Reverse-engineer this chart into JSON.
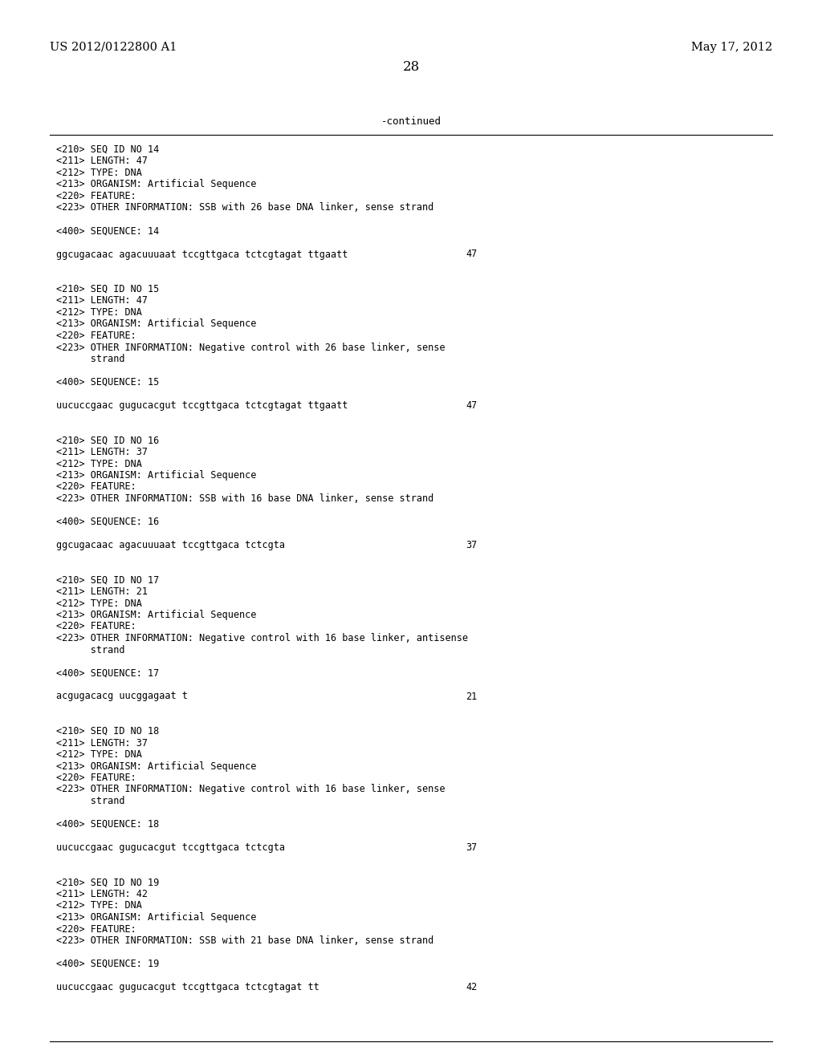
{
  "bg_color": "#ffffff",
  "header_left": "US 2012/0122800 A1",
  "header_right": "May 17, 2012",
  "page_number": "28",
  "continued_label": "-continued",
  "sections": [
    {
      "seq_id": "14",
      "length": "47",
      "type": "DNA",
      "organism": "Artificial Sequence",
      "other_info": "SSB with 26 base DNA linker, sense strand",
      "other_info_wrapped": false,
      "sequence_num": "14",
      "sequence": "ggcugacaac agacuuuaat tccgttgaca tctcgtagat ttgaatt",
      "seq_length_num": "47"
    },
    {
      "seq_id": "15",
      "length": "47",
      "type": "DNA",
      "organism": "Artificial Sequence",
      "other_info": "Negative control with 26 base linker, sense",
      "other_info_line2": "      strand",
      "other_info_wrapped": true,
      "sequence_num": "15",
      "sequence": "uucuccgaac gugucacgut tccgttgaca tctcgtagat ttgaatt",
      "seq_length_num": "47"
    },
    {
      "seq_id": "16",
      "length": "37",
      "type": "DNA",
      "organism": "Artificial Sequence",
      "other_info": "SSB with 16 base DNA linker, sense strand",
      "other_info_wrapped": false,
      "sequence_num": "16",
      "sequence": "ggcugacaac agacuuuaat tccgttgaca tctcgta",
      "seq_length_num": "37"
    },
    {
      "seq_id": "17",
      "length": "21",
      "type": "DNA",
      "organism": "Artificial Sequence",
      "other_info": "Negative control with 16 base linker, antisense",
      "other_info_line2": "      strand",
      "other_info_wrapped": true,
      "sequence_num": "17",
      "sequence": "acgugacacg uucggagaat t",
      "seq_length_num": "21"
    },
    {
      "seq_id": "18",
      "length": "37",
      "type": "DNA",
      "organism": "Artificial Sequence",
      "other_info": "Negative control with 16 base linker, sense",
      "other_info_line2": "      strand",
      "other_info_wrapped": true,
      "sequence_num": "18",
      "sequence": "uucuccgaac gugucacgut tccgttgaca tctcgta",
      "seq_length_num": "37"
    },
    {
      "seq_id": "19",
      "length": "42",
      "type": "DNA",
      "organism": "Artificial Sequence",
      "other_info": "SSB with 21 base DNA linker, sense strand",
      "other_info_wrapped": false,
      "sequence_num": "19",
      "sequence": "uucuccgaac gugucacgut tccgttgaca tctcgtagat tt",
      "seq_length_num": "42"
    }
  ]
}
